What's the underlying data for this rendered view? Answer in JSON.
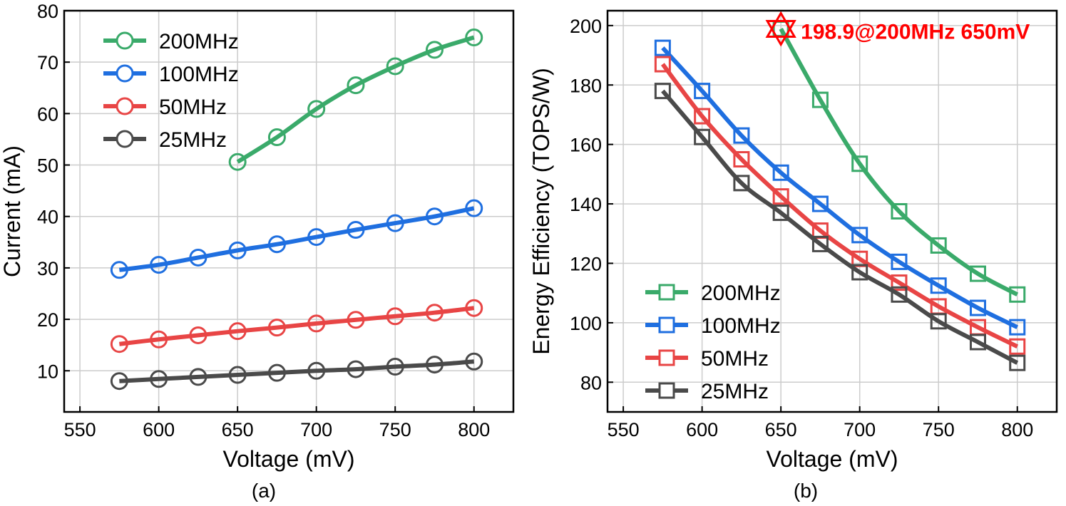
{
  "chart_data": [
    {
      "type": "line",
      "caption": "(a)",
      "xlabel": "Voltage (mV)",
      "ylabel": "Current (mA)",
      "xlim": [
        540,
        825
      ],
      "ylim": [
        2,
        80
      ],
      "xticks": [
        550,
        600,
        650,
        700,
        750,
        800
      ],
      "yticks": [
        10,
        20,
        30,
        40,
        50,
        60,
        70,
        80
      ],
      "grid": true,
      "marker": "circle",
      "legend_position": "top-left",
      "series": [
        {
          "name": "200MHz",
          "color": "#3aaa6a",
          "x": [
            650,
            675,
            700,
            725,
            750,
            775,
            800
          ],
          "values": [
            50.6,
            55.4,
            60.9,
            65.5,
            69.2,
            72.4,
            74.8
          ]
        },
        {
          "name": "100MHz",
          "color": "#1f6fe0",
          "x": [
            575,
            600,
            625,
            650,
            675,
            700,
            725,
            750,
            775,
            800
          ],
          "values": [
            29.6,
            30.6,
            32.0,
            33.4,
            34.6,
            36.0,
            37.4,
            38.7,
            40.0,
            41.6
          ]
        },
        {
          "name": "50MHz",
          "color": "#e84545",
          "x": [
            575,
            600,
            625,
            650,
            675,
            700,
            725,
            750,
            775,
            800
          ],
          "values": [
            15.2,
            16.1,
            16.9,
            17.7,
            18.4,
            19.2,
            19.9,
            20.6,
            21.3,
            22.2
          ]
        },
        {
          "name": "25MHz",
          "color": "#4a4a4a",
          "x": [
            575,
            600,
            625,
            650,
            675,
            700,
            725,
            750,
            775,
            800
          ],
          "values": [
            8.0,
            8.4,
            8.8,
            9.2,
            9.6,
            10.0,
            10.3,
            10.8,
            11.2,
            11.8
          ]
        }
      ]
    },
    {
      "type": "line",
      "caption": "(b)",
      "xlabel": "Voltage (mV)",
      "ylabel": "Energy Efficiency (TOPS/W)",
      "xlim": [
        540,
        825
      ],
      "ylim": [
        70,
        205
      ],
      "xticks": [
        550,
        600,
        650,
        700,
        750,
        800
      ],
      "yticks": [
        80,
        100,
        120,
        140,
        160,
        180,
        200
      ],
      "grid": true,
      "marker": "square",
      "legend_position": "bottom-left",
      "series": [
        {
          "name": "200MHz",
          "color": "#3aaa6a",
          "x": [
            650,
            675,
            700,
            725,
            750,
            775,
            800
          ],
          "values": [
            198.9,
            175.0,
            153.5,
            137.5,
            126.0,
            116.5,
            109.5
          ]
        },
        {
          "name": "100MHz",
          "color": "#1f6fe0",
          "x": [
            575,
            600,
            625,
            650,
            675,
            700,
            725,
            750,
            775,
            800
          ],
          "values": [
            192.5,
            178.0,
            163.0,
            150.5,
            140.0,
            129.5,
            120.5,
            112.5,
            105.0,
            98.5
          ]
        },
        {
          "name": "50MHz",
          "color": "#e84545",
          "x": [
            575,
            600,
            625,
            650,
            675,
            700,
            725,
            750,
            775,
            800
          ],
          "values": [
            187.0,
            169.5,
            155.0,
            142.5,
            131.0,
            121.5,
            113.5,
            105.5,
            98.5,
            92.0
          ]
        },
        {
          "name": "25MHz",
          "color": "#4a4a4a",
          "x": [
            575,
            600,
            625,
            650,
            675,
            700,
            725,
            750,
            775,
            800
          ],
          "values": [
            178.0,
            162.5,
            147.0,
            137.0,
            126.5,
            117.0,
            109.5,
            100.5,
            93.5,
            86.5
          ]
        }
      ],
      "annotation": {
        "text": "198.9@200MHz 650mV",
        "x": 650,
        "y": 198.9,
        "color": "#ff0000",
        "marker": "star"
      }
    }
  ]
}
